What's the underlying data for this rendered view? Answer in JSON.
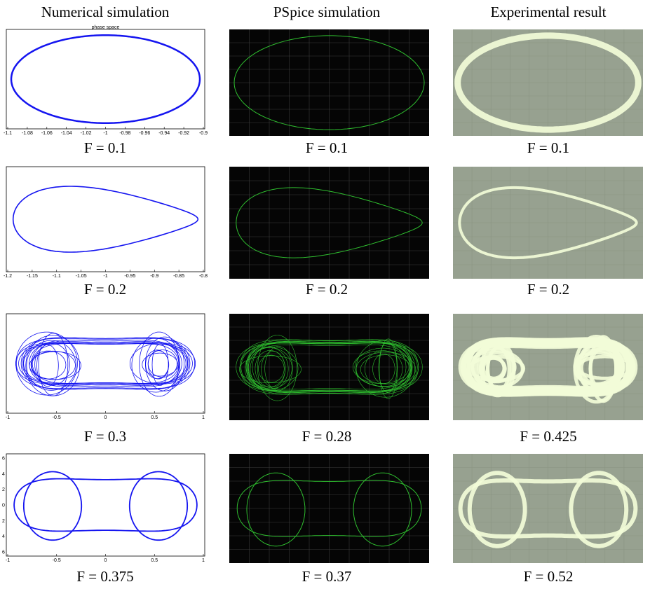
{
  "columns": [
    "Numerical simulation",
    "PSpice simulation",
    "Experimental result"
  ],
  "rows": [
    {
      "panels": [
        {
          "title": "phase space",
          "caption": "F = 0.1",
          "xticks": [
            "-1.1",
            "-1.08",
            "-1.06",
            "-1.04",
            "-1.02",
            "-1",
            "-0.98",
            "-0.96",
            "-0.94",
            "-0.92",
            "-0.9"
          ]
        },
        {
          "caption": "F = 0.1"
        },
        {
          "caption": "F = 0.1"
        }
      ]
    },
    {
      "panels": [
        {
          "caption": "F = 0.2",
          "xticks": [
            "-1.2",
            "-1.15",
            "-1.1",
            "-1.05",
            "-1",
            "-0.95",
            "-0.9",
            "-0.85",
            "-0.8"
          ]
        },
        {
          "caption": "F = 0.2"
        },
        {
          "caption": "F = 0.2"
        }
      ]
    },
    {
      "panels": [
        {
          "caption": "F = 0.3",
          "xticks": [
            "-1",
            "-0.5",
            "0",
            "0.5",
            "1"
          ]
        },
        {
          "caption": "F = 0.28"
        },
        {
          "caption": "F = 0.425"
        }
      ]
    },
    {
      "panels": [
        {
          "caption": "F = 0.375",
          "xticks": [
            "-1",
            "-0.5",
            "0",
            "0.5",
            "1"
          ],
          "yticks": [
            "6",
            "4",
            "2",
            "0",
            "2",
            "4",
            "6"
          ]
        },
        {
          "caption": "F = 0.37"
        },
        {
          "caption": "F = 0.52"
        }
      ]
    }
  ]
}
